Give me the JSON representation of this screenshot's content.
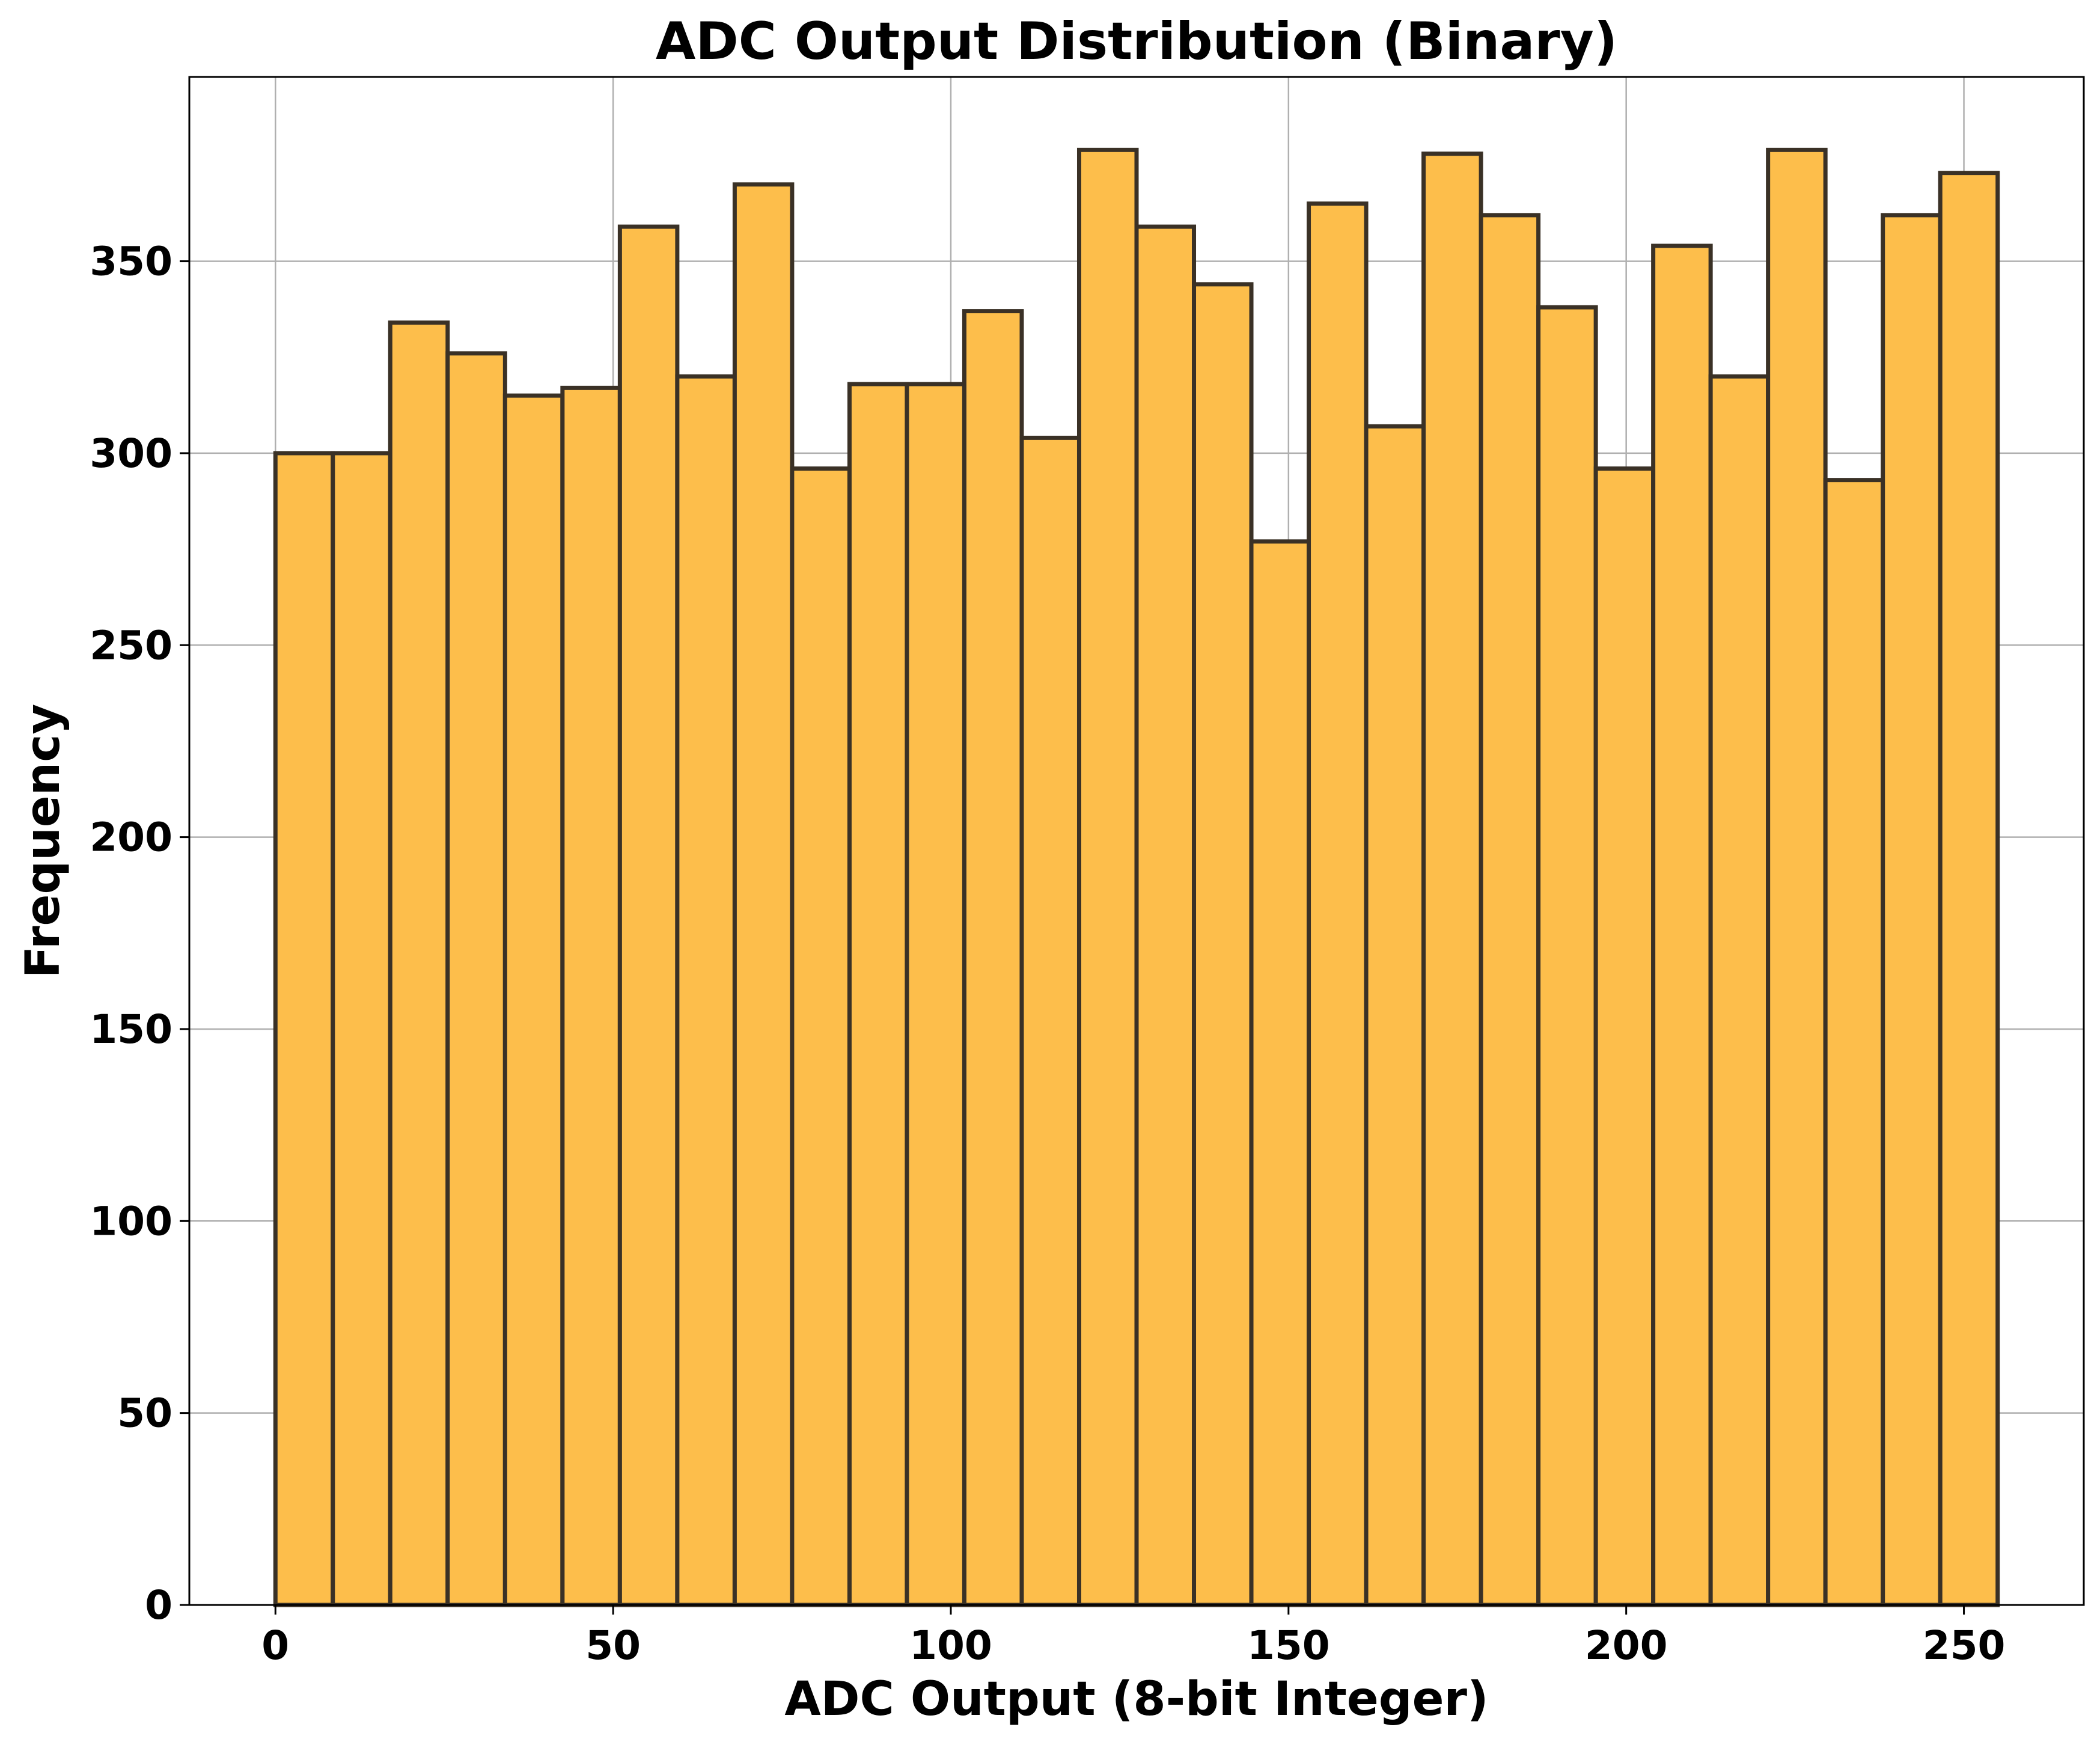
{
  "chart_data": {
    "type": "bar",
    "title": "ADC Output Distribution (Binary)",
    "xlabel": "ADC Output (8-bit Integer)",
    "ylabel": "Frequency",
    "xlim": [
      -12.75,
      267.75
    ],
    "ylim": [
      0,
      398
    ],
    "xticks": [
      0,
      50,
      100,
      150,
      200,
      250
    ],
    "yticks": [
      0,
      50,
      100,
      150,
      200,
      250,
      300,
      350
    ],
    "bin_edges": [
      0,
      8.5,
      17,
      25.5,
      34,
      42.5,
      51,
      59.5,
      68,
      76.5,
      85,
      93.5,
      102,
      110.5,
      119,
      127.5,
      136,
      144.5,
      153,
      161.5,
      170,
      178.5,
      187,
      195.5,
      204,
      212.5,
      221,
      229.5,
      238,
      246.5,
      255
    ],
    "values": [
      300,
      300,
      334,
      326,
      315,
      317,
      359,
      320,
      370,
      296,
      318,
      318,
      337,
      304,
      379,
      359,
      344,
      277,
      365,
      307,
      378,
      362,
      338,
      296,
      354,
      320,
      379,
      293,
      362,
      373
    ],
    "grid": true,
    "bar_color": "#FDBE4B",
    "edge_color": "#3a3126"
  }
}
